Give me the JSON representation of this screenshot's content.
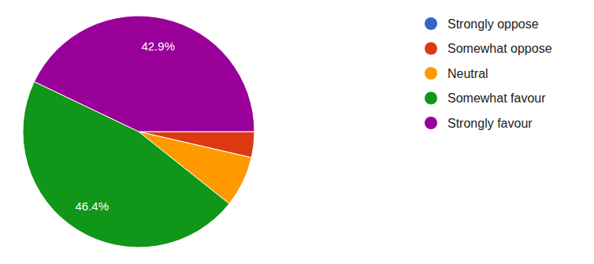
{
  "chart_data": {
    "type": "pie",
    "categories": [
      "Strongly oppose",
      "Somewhat oppose",
      "Neutral",
      "Somewhat favour",
      "Strongly favour"
    ],
    "values": [
      0,
      3.6,
      7.1,
      46.4,
      42.9
    ],
    "value_labels": [
      null,
      null,
      null,
      "46.4%",
      "42.9%"
    ],
    "colors": [
      "#3366cc",
      "#dc3912",
      "#ff9900",
      "#109618",
      "#990099"
    ],
    "data_labels": true,
    "legend": "right"
  }
}
